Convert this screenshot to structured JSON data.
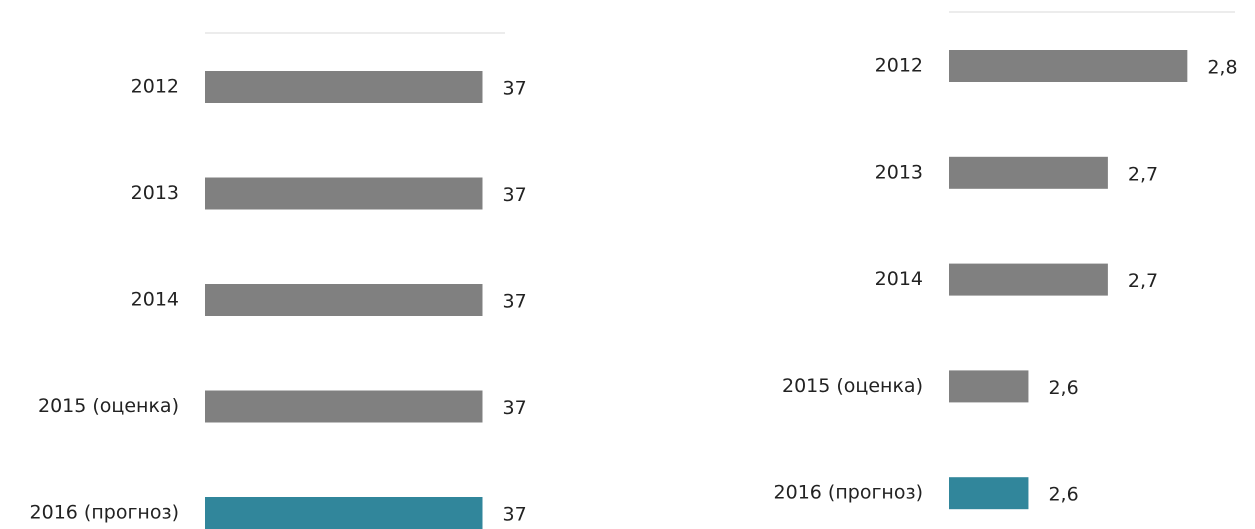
{
  "chart_data": [
    {
      "type": "bar",
      "orientation": "horizontal",
      "categories": [
        "2012",
        "2013",
        "2014",
        "2015 (оценка)",
        "2016 (прогноз)"
      ],
      "values": [
        37,
        37,
        37,
        37,
        37
      ],
      "colors": [
        "#808080",
        "#808080",
        "#808080",
        "#808080",
        "#31869b"
      ],
      "xlim": [
        0,
        40
      ]
    },
    {
      "type": "bar",
      "orientation": "horizontal",
      "categories": [
        "2012",
        "2013",
        "2014",
        "2015 (оценка)",
        "2016 (прогноз)"
      ],
      "values": [
        2.8,
        2.7,
        2.7,
        2.6,
        2.6
      ],
      "value_labels": [
        "2,8",
        "2,7",
        "2,7",
        "2,6",
        "2,6"
      ],
      "colors": [
        "#808080",
        "#808080",
        "#808080",
        "#808080",
        "#31869b"
      ],
      "xlim": [
        2.5,
        2.86
      ]
    }
  ]
}
